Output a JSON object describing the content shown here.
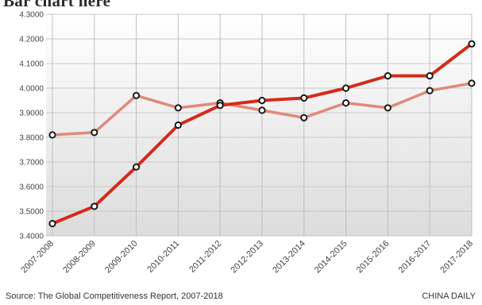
{
  "header": {
    "title_cropped": "Bar chart here"
  },
  "chart_data": {
    "type": "line",
    "categories": [
      "2007-2008",
      "2008-2009",
      "2009-2010",
      "2010-2011",
      "2011-2012",
      "2012-2013",
      "2013-2014",
      "2014-2015",
      "2015-2016",
      "2016-2017",
      "2017-2018"
    ],
    "series": [
      {
        "color": "#d42a1a",
        "values": [
          3.45,
          3.52,
          3.68,
          3.85,
          3.93,
          3.95,
          3.96,
          4.0,
          4.05,
          4.05,
          4.18
        ]
      },
      {
        "color": "#e08a7a",
        "values": [
          3.81,
          3.82,
          3.97,
          3.92,
          3.94,
          3.91,
          3.88,
          3.94,
          3.92,
          3.99,
          4.02
        ]
      }
    ],
    "y_ticks": [
      "3.4000",
      "3.5000",
      "3.6000",
      "3.7000",
      "3.8000",
      "3.9000",
      "4.0000",
      "4.1000",
      "4.2000",
      "4.3000"
    ],
    "ylim": [
      3.4,
      4.3
    ],
    "grid": true,
    "title": "",
    "xlabel": "",
    "ylabel": ""
  },
  "footer": {
    "source": "Source: The Global Competitiveness Report, 2007-2018",
    "credit": "CHINA DAILY"
  }
}
